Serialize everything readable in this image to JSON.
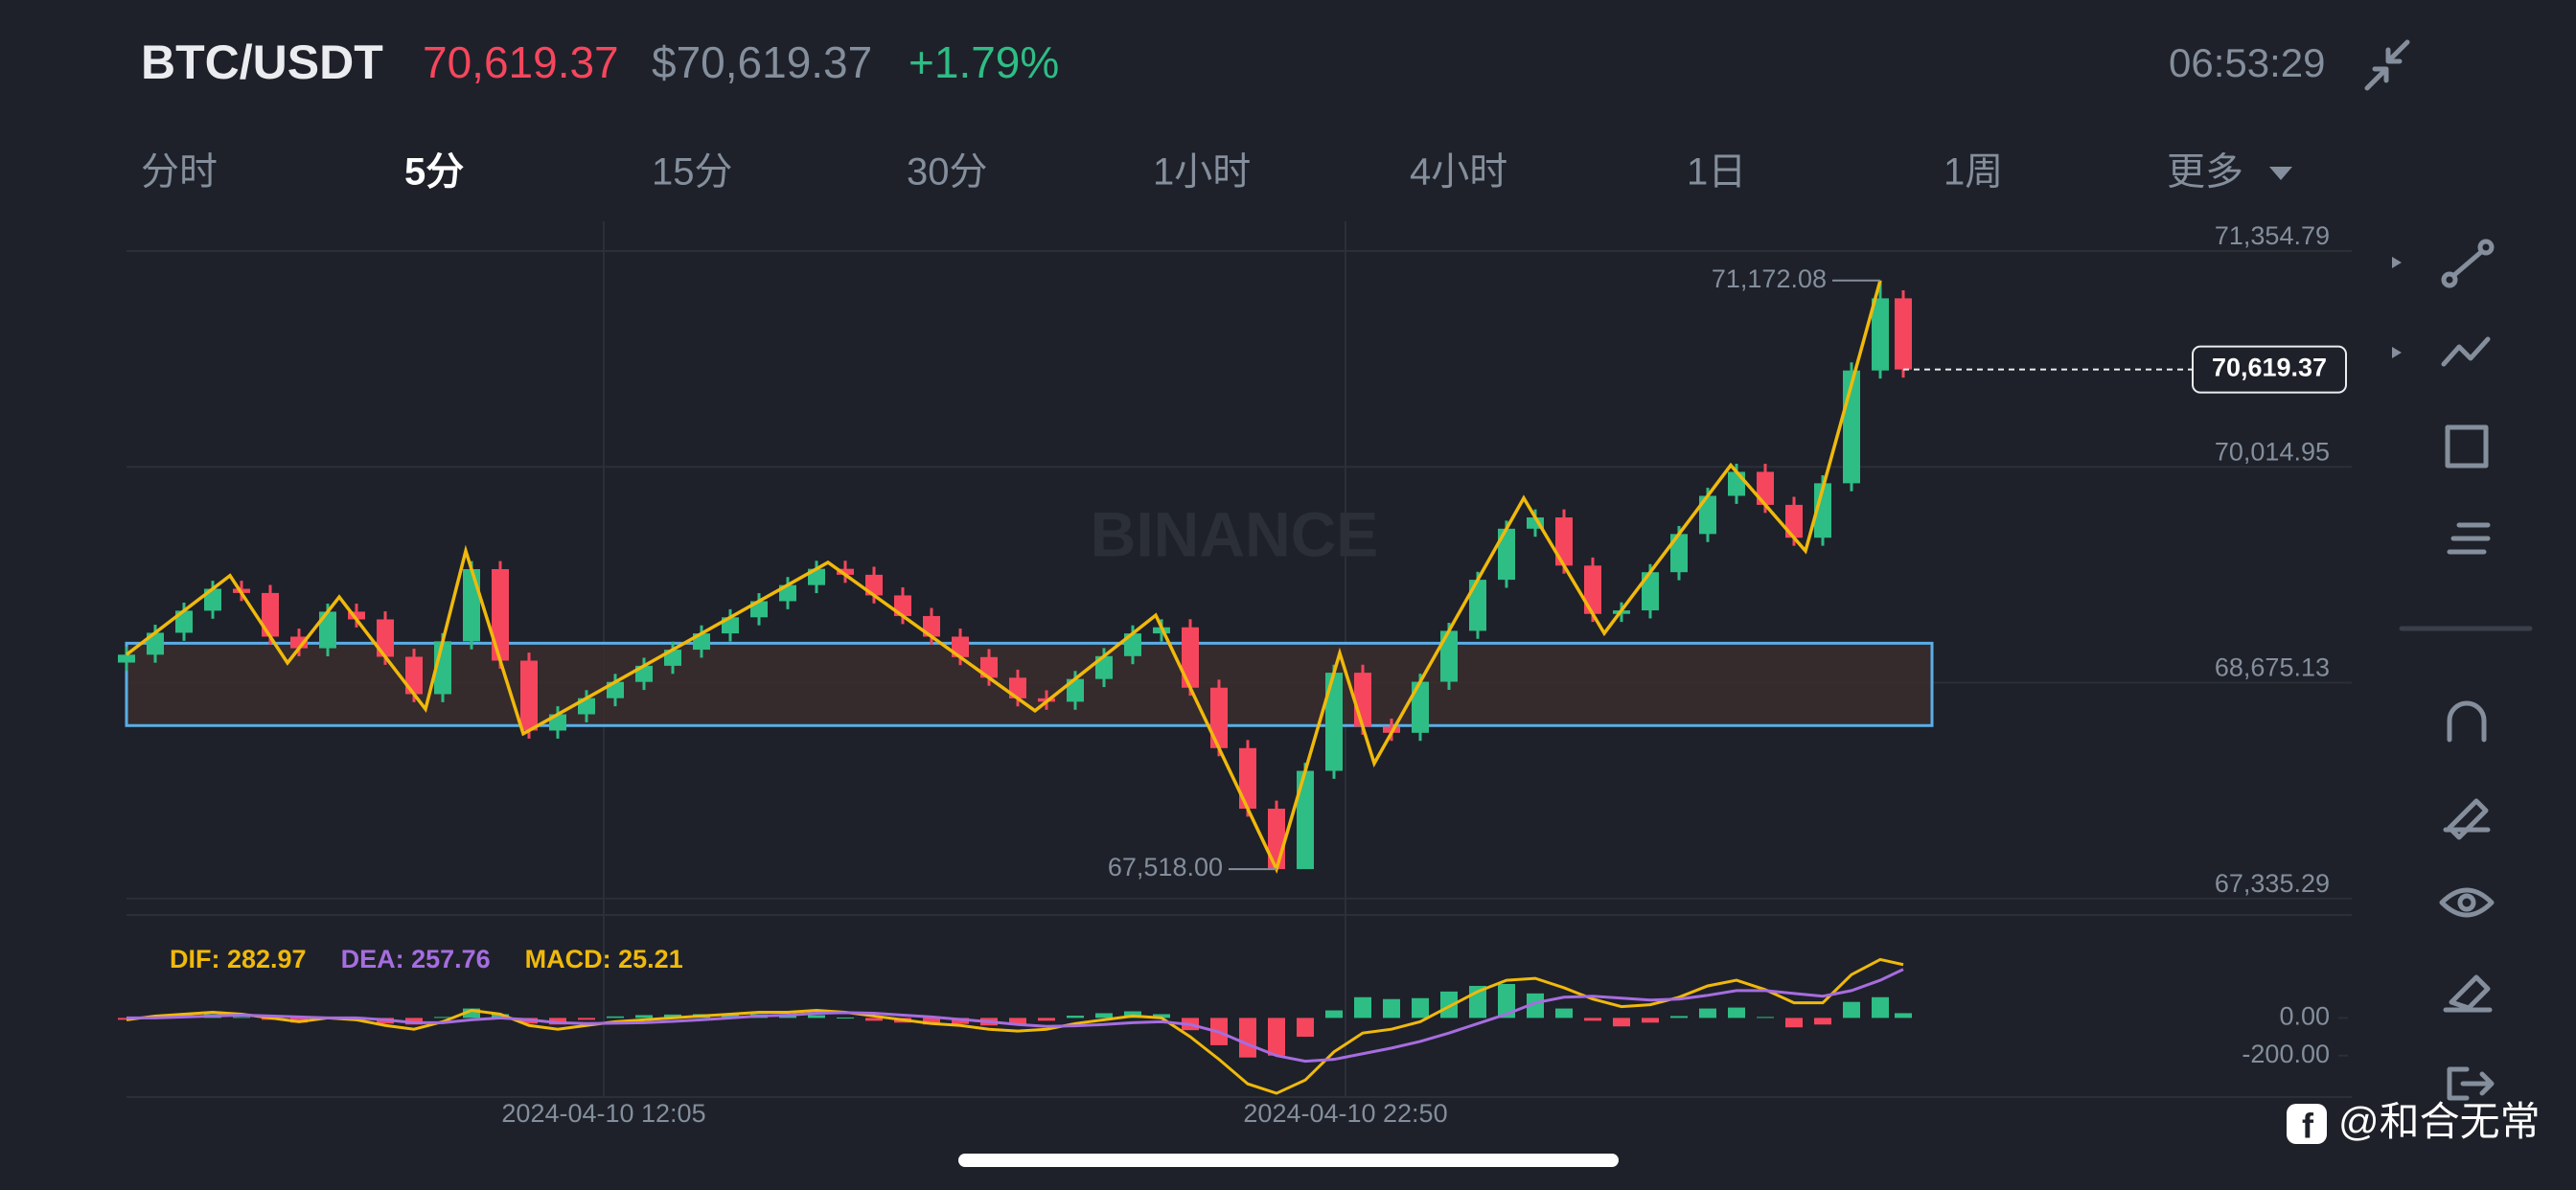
{
  "header": {
    "symbol": "BTC/USDT",
    "price": "70,619.37",
    "price_usd": "$70,619.37",
    "change": "+1.79%",
    "time": "06:53:29"
  },
  "tabs": [
    "分时",
    "5分",
    "15分",
    "30分",
    "1小时",
    "4小时",
    "1日",
    "1周",
    "更多"
  ],
  "watermark": "BINANCE",
  "footer": "@和合无常",
  "chart_data": [
    {
      "type": "candlestick",
      "x": [
        0,
        5,
        10,
        15,
        20,
        25,
        30,
        35,
        40,
        45,
        50,
        55,
        60,
        65,
        70,
        75,
        80,
        85,
        90,
        95,
        100,
        105,
        110,
        115,
        120,
        125,
        130,
        135,
        140,
        145,
        150,
        155,
        160,
        165,
        170,
        175,
        180,
        185,
        190,
        195,
        200,
        205,
        210,
        215,
        220,
        225,
        230,
        235,
        240,
        245,
        250,
        255,
        260,
        265,
        270,
        275,
        280,
        285,
        290,
        295,
        300,
        305,
        309
      ],
      "open": [
        68800,
        68849,
        68985,
        69122,
        69258,
        69232,
        68961,
        68889,
        69116,
        69068,
        68836,
        68604,
        68932,
        69380,
        68812,
        68378,
        68479,
        68579,
        68680,
        68780,
        68880,
        68981,
        69081,
        69181,
        69281,
        69382,
        69345,
        69217,
        69089,
        68961,
        68834,
        68706,
        68578,
        68557,
        68698,
        68840,
        68981,
        69019,
        68644,
        68269,
        67893,
        67518,
        68128,
        68737,
        68402,
        68364,
        68681,
        68997,
        69314,
        69631,
        69701,
        69402,
        69102,
        69124,
        69361,
        69598,
        69835,
        69984,
        69779,
        69575,
        69913,
        70613,
        71061
      ],
      "high": [
        68899,
        69035,
        69172,
        69308,
        69308,
        69282,
        69011,
        69166,
        69166,
        69118,
        68886,
        68982,
        69430,
        69430,
        68862,
        68529,
        68629,
        68730,
        68830,
        68930,
        69031,
        69131,
        69231,
        69331,
        69432,
        69432,
        69395,
        69267,
        69139,
        69011,
        68884,
        68756,
        68628,
        68748,
        68890,
        69031,
        69069,
        69069,
        68694,
        68319,
        67943,
        68178,
        68787,
        68787,
        68452,
        68731,
        69047,
        69364,
        69681,
        69751,
        69751,
        69452,
        69174,
        69411,
        69648,
        69885,
        70034,
        70034,
        69829,
        69963,
        70663,
        71172.08,
        71111
      ],
      "low": [
        68750,
        68799,
        68935,
        69072,
        69182,
        68911,
        68839,
        68839,
        69018,
        68786,
        68554,
        68554,
        68882,
        68762,
        68328,
        68328,
        68429,
        68529,
        68630,
        68730,
        68830,
        68931,
        69031,
        69131,
        69231,
        69295,
        69167,
        69039,
        68911,
        68784,
        68656,
        68528,
        68507,
        68507,
        68648,
        68790,
        68931,
        68594,
        68219,
        67843,
        67518,
        67530,
        68078,
        68352,
        68314,
        68314,
        68631,
        68947,
        69264,
        69581,
        69352,
        69052,
        69052,
        69074,
        69311,
        69548,
        69785,
        69729,
        69525,
        69525,
        69863,
        70563,
        70569
      ],
      "close": [
        68849,
        68985,
        69122,
        69258,
        69232,
        68961,
        68889,
        69116,
        69068,
        68836,
        68604,
        68932,
        69380,
        68812,
        68378,
        68479,
        68579,
        68680,
        68780,
        68880,
        68981,
        69081,
        69181,
        69281,
        69382,
        69345,
        69217,
        69089,
        68961,
        68834,
        68706,
        68578,
        68557,
        68698,
        68840,
        68981,
        69019,
        68644,
        68269,
        67893,
        67518,
        68128,
        68737,
        68402,
        68364,
        68681,
        68997,
        69314,
        69631,
        69701,
        69402,
        69102,
        69124,
        69361,
        69598,
        69835,
        69984,
        69779,
        69575,
        69913,
        70613,
        71061,
        70619.37
      ],
      "up_color": "#2ebd85",
      "down_color": "#f6465d",
      "xlim": [
        0,
        387
      ],
      "xticks": [
        {
          "value": 83,
          "label": "2024-04-10 12:05"
        },
        {
          "value": 212,
          "label": "2024-04-10 22:50"
        }
      ],
      "ylim": [
        67233,
        71539
      ],
      "yticks": [
        {
          "value": 71354.79,
          "label": "71,354.79"
        },
        {
          "value": 70014.95,
          "label": "70,014.95"
        },
        {
          "value": 68675.13,
          "label": "68,675.13"
        },
        {
          "value": 67335.29,
          "label": "67,335.29"
        }
      ],
      "grid": true,
      "max_label": "71,172.08",
      "min_label": "67,518.00",
      "last_label": "70,619.37",
      "zigzag": {
        "color": "#f0b90b",
        "x": [
          0,
          18,
          28,
          37,
          52,
          59,
          69,
          122,
          158,
          179,
          200,
          211,
          217,
          243,
          257,
          279,
          292,
          305
        ],
        "values": [
          68849,
          69340,
          68798,
          69207,
          68511,
          69493,
          68358,
          69422,
          68501,
          69094,
          67518,
          68859,
          68174,
          69821,
          68982,
          70025,
          69493,
          71172.08
        ]
      },
      "box": {
        "color": "#5aaee8",
        "fill": "#3a2d2d",
        "x": [
          0,
          314
        ],
        "y": [
          68409,
          68920
        ]
      }
    },
    {
      "type": "macd",
      "x": [
        0,
        5,
        10,
        15,
        20,
        25,
        30,
        35,
        40,
        45,
        50,
        55,
        60,
        65,
        70,
        75,
        80,
        85,
        90,
        95,
        100,
        105,
        110,
        115,
        120,
        125,
        130,
        135,
        140,
        145,
        150,
        155,
        160,
        165,
        170,
        175,
        180,
        185,
        190,
        195,
        200,
        205,
        210,
        215,
        220,
        225,
        230,
        235,
        240,
        245,
        250,
        255,
        260,
        265,
        270,
        275,
        280,
        285,
        290,
        295,
        300,
        305,
        309
      ],
      "xlim": [
        0,
        387
      ],
      "ylim": [
        -420,
        480
      ],
      "yticks": [
        {
          "value": 0,
          "label": "0.00"
        },
        {
          "value": -200,
          "label": "-200.00"
        }
      ],
      "series": [
        {
          "name": "DIF: 282.97",
          "color": "#f0b90b",
          "kind": "line",
          "values": [
            -10,
            10,
            20,
            30,
            20,
            0,
            -20,
            0,
            -10,
            -40,
            -60,
            -20,
            40,
            20,
            -40,
            -60,
            -40,
            -20,
            -10,
            0,
            10,
            20,
            30,
            30,
            40,
            30,
            10,
            -10,
            -30,
            -40,
            -60,
            -70,
            -60,
            -30,
            -10,
            10,
            0,
            -100,
            -220,
            -350,
            -400,
            -330,
            -180,
            -80,
            -60,
            -20,
            60,
            140,
            200,
            210,
            160,
            100,
            60,
            70,
            110,
            170,
            200,
            150,
            80,
            80,
            230,
            310,
            282.97
          ]
        },
        {
          "name": "DEA: 257.76",
          "color": "#a66de0",
          "kind": "line",
          "values": [
            0,
            0,
            5,
            10,
            15,
            10,
            5,
            0,
            0,
            -10,
            -25,
            -25,
            -10,
            0,
            -10,
            -25,
            -30,
            -28,
            -25,
            -18,
            -10,
            0,
            10,
            15,
            25,
            28,
            25,
            15,
            5,
            -8,
            -20,
            -35,
            -45,
            -42,
            -35,
            -25,
            -20,
            -35,
            -75,
            -140,
            -200,
            -230,
            -220,
            -190,
            -160,
            -125,
            -80,
            -30,
            20,
            80,
            110,
            115,
            105,
            95,
            100,
            120,
            145,
            145,
            130,
            115,
            145,
            200,
            257.76
          ]
        },
        {
          "name": "MACD: 25.21",
          "color": "#f0b90b",
          "kind": "histogram",
          "values": [
            -10,
            10,
            15,
            20,
            5,
            -10,
            -25,
            0,
            -10,
            -30,
            -35,
            5,
            50,
            20,
            -30,
            -35,
            -10,
            8,
            15,
            18,
            20,
            20,
            20,
            15,
            15,
            2,
            -15,
            -25,
            -35,
            -32,
            -40,
            -35,
            -15,
            12,
            25,
            35,
            20,
            -65,
            -145,
            -210,
            -200,
            -100,
            40,
            110,
            100,
            105,
            140,
            170,
            180,
            130,
            50,
            -15,
            -45,
            -25,
            10,
            50,
            55,
            5,
            -50,
            -35,
            85,
            110,
            25.21
          ]
        }
      ],
      "up_color": "#2ebd85",
      "down_color": "#f6465d"
    }
  ]
}
